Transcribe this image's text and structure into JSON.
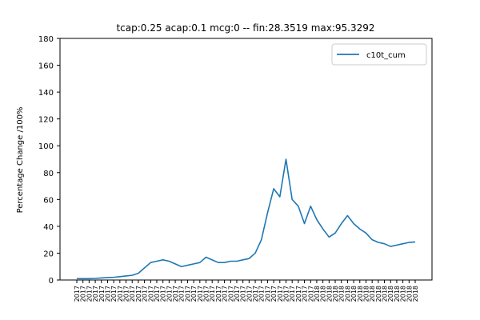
{
  "chart_data": {
    "type": "line",
    "title": "tcap:0.25 acap:0.1 mcg:0 -- fin:28.3519 max:95.3292",
    "xlabel": "",
    "ylabel": "Percentage Change /100%",
    "ylim": [
      0,
      180
    ],
    "yticks": [
      0,
      20,
      40,
      60,
      80,
      100,
      120,
      140,
      160,
      180
    ],
    "xtick_count": 56,
    "xtick_labels": [
      "2017",
      "2017",
      "2017",
      "2017",
      "2017",
      "2017",
      "2017",
      "2017",
      "2017",
      "2017",
      "2017",
      "2017",
      "2017",
      "2017",
      "2017",
      "2017",
      "2017",
      "2017",
      "2017",
      "2017",
      "2017",
      "2017",
      "2017",
      "2017",
      "2017",
      "2017",
      "2017",
      "2017",
      "2017",
      "2017",
      "2017",
      "2017",
      "2017",
      "2017",
      "2017",
      "2017",
      "2017",
      "2017",
      "2017",
      "2018",
      "2018",
      "2018",
      "2018",
      "2018",
      "2018",
      "2018",
      "2018",
      "2018",
      "2018",
      "2018",
      "2018",
      "2018",
      "2018",
      "2018",
      "2018",
      "2018"
    ],
    "grid": false,
    "legend_position": "upper right",
    "series": [
      {
        "name": "c10t_cum",
        "color": "#1f77b4",
        "x": [
          0,
          1,
          2,
          3,
          4,
          5,
          6,
          7,
          8,
          9,
          10,
          11,
          12,
          13,
          14,
          15,
          16,
          17,
          18,
          19,
          20,
          21,
          22,
          23,
          24,
          25,
          26,
          27,
          28,
          29,
          30,
          31,
          32,
          33,
          34,
          35,
          36,
          37,
          38,
          39,
          40,
          41,
          42,
          43,
          44,
          45,
          46,
          47,
          48,
          49,
          50,
          51,
          52,
          53,
          54,
          55
        ],
        "values": [
          1,
          1,
          1,
          1.2,
          1.5,
          1.8,
          2,
          2.5,
          3,
          3.5,
          5,
          9,
          13,
          14,
          15,
          14,
          12,
          10,
          11,
          12,
          13,
          17,
          15,
          13,
          13,
          14,
          14,
          15,
          16,
          20,
          30,
          50,
          68,
          62,
          90,
          60,
          55,
          42,
          55,
          45,
          38,
          32,
          35,
          42,
          48,
          42,
          38,
          35,
          30,
          28,
          27,
          25,
          26,
          27,
          28,
          28.35
        ]
      }
    ]
  }
}
